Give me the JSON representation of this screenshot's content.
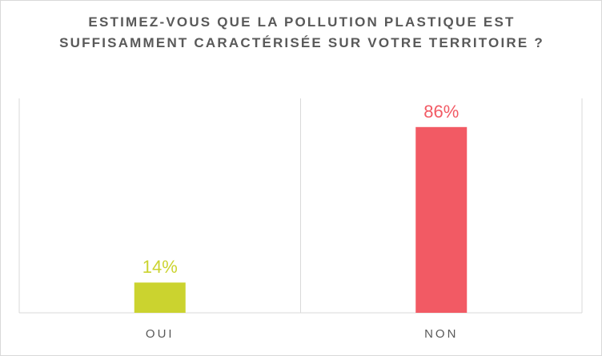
{
  "chart_data": {
    "type": "bar",
    "title": "ESTIMEZ-VOUS QUE LA POLLUTION PLASTIQUE EST SUFFISAMMENT CARACTÉRISÉE SUR VOTRE TERRITOIRE ?",
    "categories": [
      "OUI",
      "NON"
    ],
    "values": [
      14,
      86
    ],
    "data_labels": [
      "14%",
      "86%"
    ],
    "colors": [
      "#cbd32f",
      "#f25a64"
    ],
    "ylim": [
      0,
      100
    ],
    "grid": "vertical separators between categories",
    "legend": "none"
  }
}
